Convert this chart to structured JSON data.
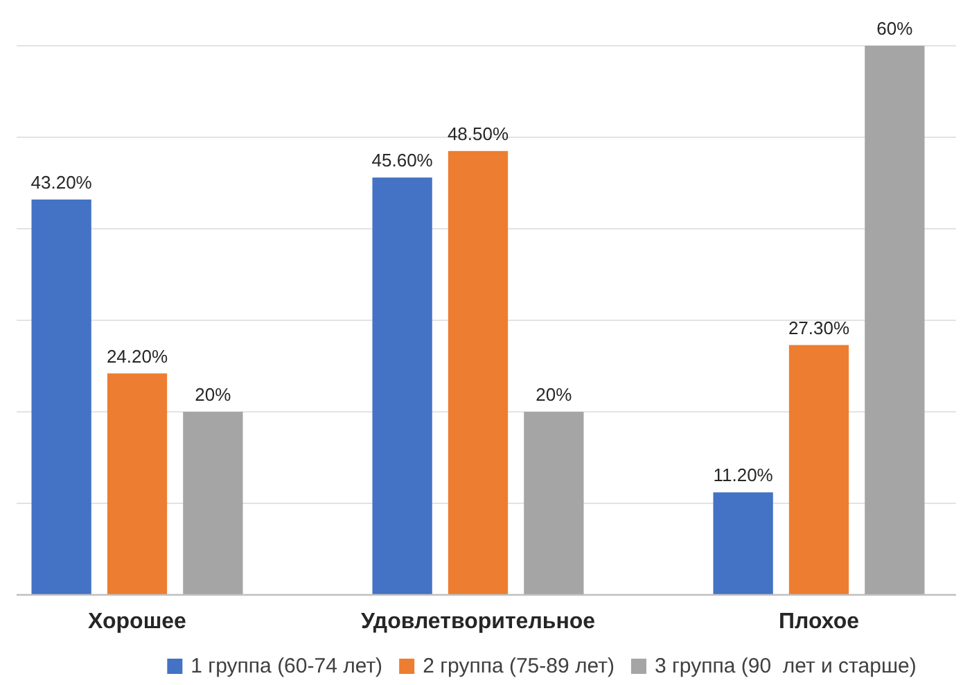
{
  "chart_data": {
    "type": "bar",
    "categories": [
      "Хорошее",
      "Удовлетворительное",
      "Плохое"
    ],
    "series": [
      {
        "name": "1 группа (60-74 лет)",
        "color": "#4472c4",
        "values": [
          43.2,
          45.6,
          11.2
        ],
        "value_labels": [
          "43.20%",
          "45.60%",
          "11.20%"
        ]
      },
      {
        "name": "2 группа (75-89 лет)",
        "color": "#ed7d31",
        "values": [
          24.2,
          48.5,
          27.3
        ],
        "value_labels": [
          "24.20%",
          "48.50%",
          "27.30%"
        ]
      },
      {
        "name": "3 группа (90  лет и старше)",
        "color": "#a5a5a5",
        "values": [
          20,
          20,
          60
        ],
        "value_labels": [
          "20%",
          "20%",
          "60%"
        ]
      }
    ],
    "ylim": [
      0,
      60
    ],
    "yticks": [
      {
        "value": 0,
        "label": null
      },
      {
        "value": 10,
        "label": null
      },
      {
        "value": 20,
        "label": null
      },
      {
        "value": 30,
        "label": null
      },
      {
        "value": 40,
        "label": null
      },
      {
        "value": 50,
        "label": null
      },
      {
        "value": 60,
        "label": null
      }
    ],
    "tick_labels": "x",
    "grid": "y",
    "legend": "bottom"
  }
}
